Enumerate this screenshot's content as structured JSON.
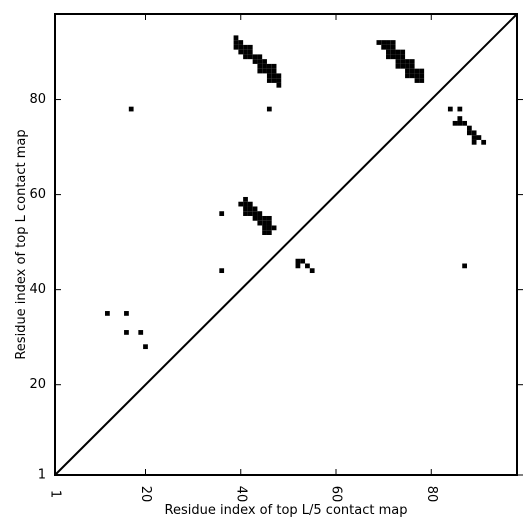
{
  "chart_data": {
    "type": "heatmap",
    "title": "",
    "xlabel": "Residue index of top L/5 contact map",
    "ylabel": "Residue index of top L contact map",
    "xlim": [
      1,
      98
    ],
    "ylim": [
      1,
      98
    ],
    "x_ticks": [
      1,
      20,
      40,
      60,
      80
    ],
    "y_ticks": [
      1,
      20,
      40,
      60,
      80
    ],
    "grid": false,
    "diagonal": true,
    "colors": {
      "contact": "#000000",
      "background": "#ffffff",
      "axis": "#000000"
    },
    "upper_triangle_points": [
      [
        39,
        93
      ],
      [
        39,
        92
      ],
      [
        39,
        91
      ],
      [
        40,
        92
      ],
      [
        40,
        91
      ],
      [
        40,
        90
      ],
      [
        41,
        91
      ],
      [
        41,
        90
      ],
      [
        41,
        89
      ],
      [
        42,
        91
      ],
      [
        42,
        90
      ],
      [
        42,
        89
      ],
      [
        43,
        89
      ],
      [
        43,
        88
      ],
      [
        44,
        89
      ],
      [
        44,
        88
      ],
      [
        44,
        87
      ],
      [
        44,
        86
      ],
      [
        45,
        88
      ],
      [
        45,
        87
      ],
      [
        45,
        86
      ],
      [
        46,
        87
      ],
      [
        46,
        86
      ],
      [
        46,
        85
      ],
      [
        46,
        84
      ],
      [
        47,
        87
      ],
      [
        47,
        86
      ],
      [
        47,
        85
      ],
      [
        47,
        84
      ],
      [
        48,
        85
      ],
      [
        48,
        84
      ],
      [
        48,
        83
      ],
      [
        69,
        92
      ],
      [
        70,
        92
      ],
      [
        70,
        91
      ],
      [
        71,
        92
      ],
      [
        71,
        91
      ],
      [
        71,
        90
      ],
      [
        71,
        89
      ],
      [
        72,
        92
      ],
      [
        72,
        91
      ],
      [
        72,
        90
      ],
      [
        72,
        89
      ],
      [
        73,
        90
      ],
      [
        73,
        89
      ],
      [
        73,
        88
      ],
      [
        73,
        87
      ],
      [
        74,
        90
      ],
      [
        74,
        89
      ],
      [
        74,
        88
      ],
      [
        74,
        87
      ],
      [
        75,
        88
      ],
      [
        75,
        87
      ],
      [
        75,
        86
      ],
      [
        75,
        85
      ],
      [
        76,
        88
      ],
      [
        76,
        87
      ],
      [
        76,
        86
      ],
      [
        76,
        85
      ],
      [
        77,
        86
      ],
      [
        77,
        85
      ],
      [
        77,
        84
      ],
      [
        78,
        86
      ],
      [
        78,
        85
      ],
      [
        78,
        84
      ]
    ],
    "lower_triangle_points": [
      [
        17,
        78
      ],
      [
        46,
        78
      ],
      [
        36,
        56
      ],
      [
        40,
        58
      ],
      [
        41,
        59
      ],
      [
        41,
        58
      ],
      [
        41,
        57
      ],
      [
        41,
        56
      ],
      [
        42,
        58
      ],
      [
        42,
        57
      ],
      [
        42,
        56
      ],
      [
        43,
        57
      ],
      [
        43,
        56
      ],
      [
        43,
        55
      ],
      [
        44,
        56
      ],
      [
        44,
        55
      ],
      [
        44,
        54
      ],
      [
        45,
        55
      ],
      [
        45,
        54
      ],
      [
        45,
        53
      ],
      [
        45,
        52
      ],
      [
        46,
        55
      ],
      [
        46,
        54
      ],
      [
        46,
        53
      ],
      [
        46,
        52
      ],
      [
        47,
        53
      ],
      [
        52,
        46
      ],
      [
        52,
        45
      ],
      [
        53,
        46
      ],
      [
        54,
        45
      ],
      [
        55,
        44
      ],
      [
        36,
        44
      ],
      [
        84,
        78
      ],
      [
        86,
        78
      ],
      [
        85,
        75
      ],
      [
        86,
        76
      ],
      [
        86,
        75
      ],
      [
        87,
        75
      ],
      [
        88,
        74
      ],
      [
        88,
        73
      ],
      [
        89,
        73
      ],
      [
        89,
        72
      ],
      [
        89,
        71
      ],
      [
        90,
        72
      ],
      [
        91,
        71
      ],
      [
        87,
        45
      ],
      [
        12,
        35
      ],
      [
        16,
        35
      ],
      [
        16,
        31
      ],
      [
        19,
        31
      ],
      [
        20,
        28
      ]
    ]
  }
}
